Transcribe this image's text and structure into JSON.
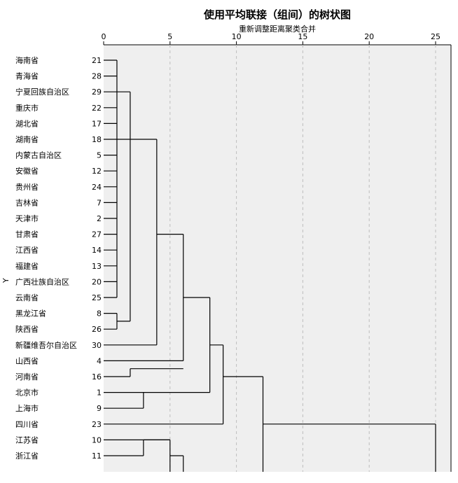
{
  "chart_data": {
    "type": "dendrogram",
    "title": "使用平均联接（组间）的树状图",
    "xlabel": "重新调整距离聚类合并",
    "ylabel": "Y",
    "xlim": [
      0,
      25
    ],
    "xticks": [
      0,
      5,
      10,
      15,
      20,
      25
    ],
    "grid": true,
    "leaves": [
      {
        "name": "海南省",
        "id": "21"
      },
      {
        "name": "青海省",
        "id": "28"
      },
      {
        "name": "宁夏回族自治区",
        "id": "29"
      },
      {
        "name": "重庆市",
        "id": "22"
      },
      {
        "name": "湖北省",
        "id": "17"
      },
      {
        "name": "湖南省",
        "id": "18"
      },
      {
        "name": "内蒙古自治区",
        "id": "5"
      },
      {
        "name": "安徽省",
        "id": "12"
      },
      {
        "name": "贵州省",
        "id": "24"
      },
      {
        "name": "吉林省",
        "id": "7"
      },
      {
        "name": "天津市",
        "id": "2"
      },
      {
        "name": "甘肃省",
        "id": "27"
      },
      {
        "name": "江西省",
        "id": "14"
      },
      {
        "name": "福建省",
        "id": "13"
      },
      {
        "name": "广西壮族自治区",
        "id": "20"
      },
      {
        "name": "云南省",
        "id": "25"
      },
      {
        "name": "黑龙江省",
        "id": "8"
      },
      {
        "name": "陕西省",
        "id": "26"
      },
      {
        "name": "新疆维吾尔自治区",
        "id": "30"
      },
      {
        "name": "山西省",
        "id": "4"
      },
      {
        "name": "河南省",
        "id": "16"
      },
      {
        "name": "北京市",
        "id": "1"
      },
      {
        "name": "上海市",
        "id": "9"
      },
      {
        "name": "四川省",
        "id": "23"
      },
      {
        "name": "江苏省",
        "id": "10"
      },
      {
        "name": "浙江省",
        "id": "11"
      }
    ],
    "merges": [
      {
        "members": [
          0,
          1,
          2,
          3,
          4,
          5,
          6,
          7,
          8,
          9,
          10,
          11,
          12,
          13,
          14,
          15
        ],
        "distance": 1.0
      },
      {
        "members": [
          16,
          17
        ],
        "distance": 1.0
      },
      {
        "members": [
          19,
          20
        ],
        "distance": 2.0
      },
      {
        "members": [
          21,
          22
        ],
        "distance": 3.0
      },
      {
        "members": [
          24,
          25
        ],
        "distance": 3.0
      },
      {
        "members": [
          "0-15",
          "16-17"
        ],
        "distance": 2.0
      },
      {
        "members": [
          "0-17",
          18
        ],
        "distance": 4.0
      },
      {
        "members": [
          "0-18",
          "19-20"
        ],
        "distance": 6.0
      },
      {
        "members": [
          "0-20",
          "21-22"
        ],
        "distance": 8.0
      },
      {
        "members": [
          "0-22",
          23
        ],
        "distance": 9.0
      },
      {
        "members": [
          "0-23",
          "24-25+"
        ],
        "distance": 12.0
      },
      {
        "members": [
          "0-25",
          "further"
        ],
        "distance": 25.0
      }
    ]
  }
}
